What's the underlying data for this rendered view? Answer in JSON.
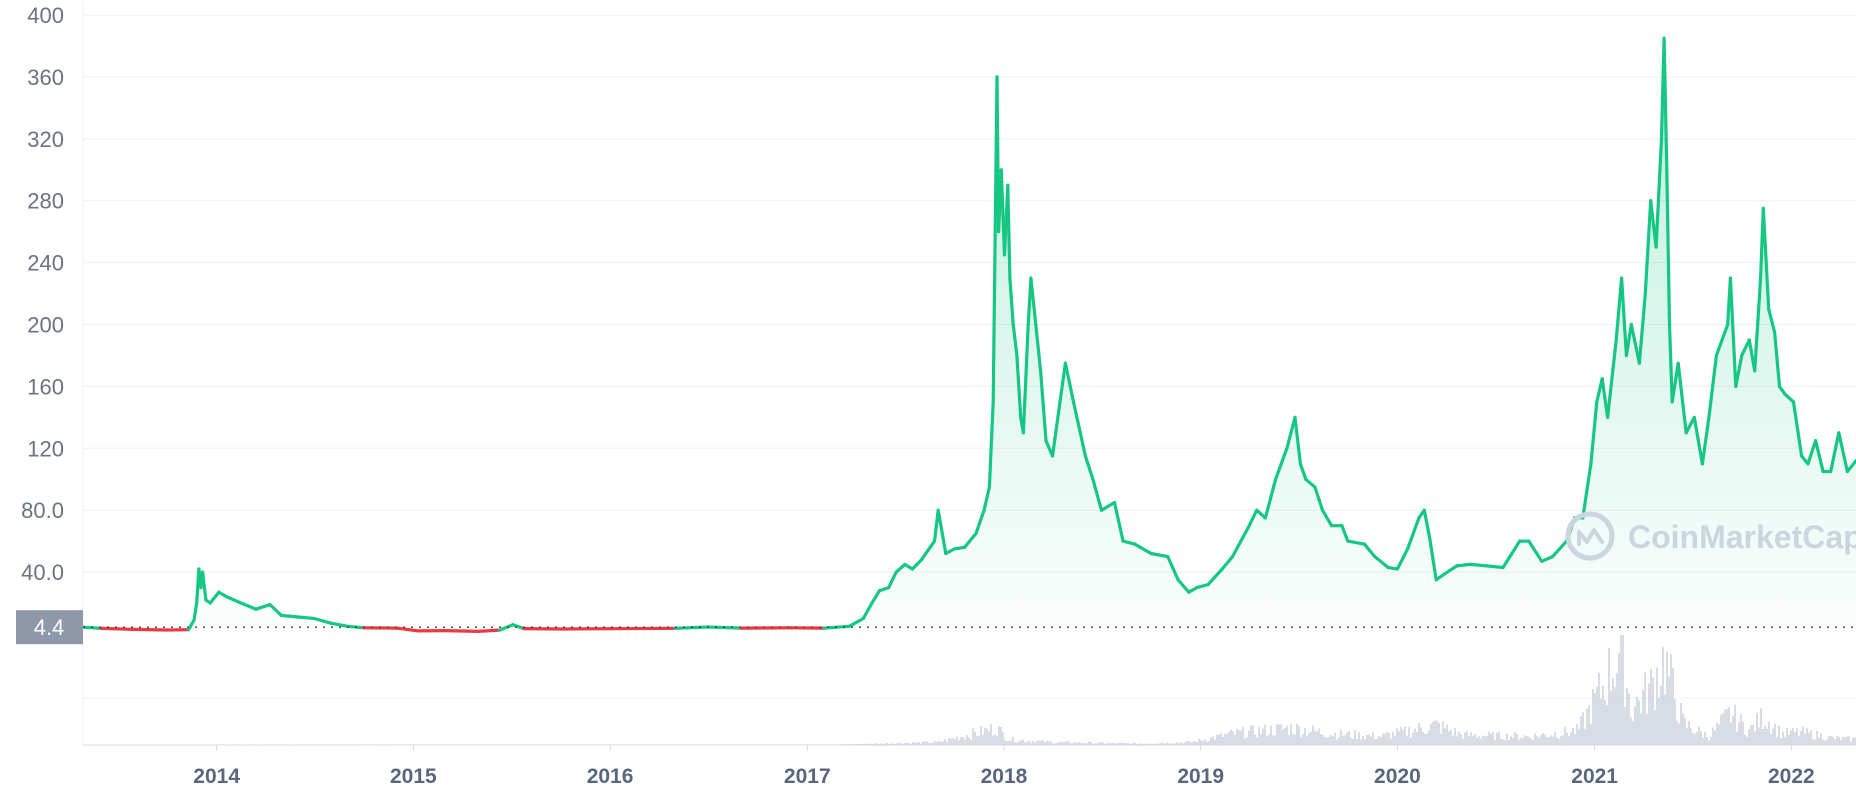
{
  "chart_data": {
    "type": "line",
    "title": "",
    "xlabel": "",
    "ylabel": "",
    "y_ticks": [
      "400",
      "360",
      "320",
      "280",
      "240",
      "200",
      "160",
      "120",
      "80.0",
      "40.0"
    ],
    "y_tick_values": [
      400,
      360,
      320,
      280,
      240,
      200,
      160,
      120,
      80,
      40
    ],
    "x_ticks": [
      "2014",
      "2015",
      "2016",
      "2017",
      "2018",
      "2019",
      "2020",
      "2021",
      "2022"
    ],
    "x_tick_values": [
      "2014-01-01",
      "2015-01-01",
      "2016-01-01",
      "2017-01-01",
      "2018-01-01",
      "2019-01-01",
      "2020-01-01",
      "2021-01-01",
      "2022-01-01"
    ],
    "x_range": [
      "2013-04-28",
      "2022-05-01"
    ],
    "ylim": [
      0,
      400
    ],
    "grid": true,
    "current_value": 4.4,
    "current_value_label": "4.4",
    "watermark": "CoinMarketCap",
    "colors": {
      "up": "#16c784",
      "down": "#ea3943",
      "fill": "#16c784",
      "volume": "#c8cdd9",
      "badge": "#8e98a8"
    },
    "series": [
      {
        "values": [
          [
            "2013-04-28",
            4.4
          ],
          [
            "2013-06-01",
            3.6
          ],
          [
            "2013-08-01",
            3.0
          ],
          [
            "2013-10-01",
            2.6
          ],
          [
            "2013-11-10",
            2.8
          ],
          [
            "2013-11-20",
            9.0
          ],
          [
            "2013-11-25",
            20.0
          ],
          [
            "2013-11-29",
            42.0
          ],
          [
            "2013-12-03",
            30.0
          ],
          [
            "2013-12-06",
            40.0
          ],
          [
            "2013-12-12",
            22.0
          ],
          [
            "2013-12-20",
            20.0
          ],
          [
            "2014-01-05",
            27.0
          ],
          [
            "2014-01-20",
            24.0
          ],
          [
            "2014-02-15",
            20.0
          ],
          [
            "2014-03-15",
            16.0
          ],
          [
            "2014-04-10",
            19.0
          ],
          [
            "2014-05-01",
            12.0
          ],
          [
            "2014-06-01",
            11.0
          ],
          [
            "2014-07-01",
            10.0
          ],
          [
            "2014-08-01",
            7.0
          ],
          [
            "2014-09-01",
            5.0
          ],
          [
            "2014-10-01",
            4.0
          ],
          [
            "2014-12-01",
            3.8
          ],
          [
            "2015-01-10",
            2.0
          ],
          [
            "2015-03-01",
            2.2
          ],
          [
            "2015-05-01",
            1.7
          ],
          [
            "2015-06-10",
            2.5
          ],
          [
            "2015-07-05",
            6.0
          ],
          [
            "2015-07-25",
            3.5
          ],
          [
            "2015-10-01",
            3.2
          ],
          [
            "2016-01-01",
            3.4
          ],
          [
            "2016-05-01",
            3.7
          ],
          [
            "2016-07-01",
            4.5
          ],
          [
            "2016-09-01",
            3.8
          ],
          [
            "2016-12-01",
            4.0
          ],
          [
            "2017-02-01",
            3.8
          ],
          [
            "2017-03-20",
            5.0
          ],
          [
            "2017-04-15",
            10.0
          ],
          [
            "2017-05-01",
            20.0
          ],
          [
            "2017-05-15",
            28.0
          ],
          [
            "2017-06-01",
            30.0
          ],
          [
            "2017-06-15",
            40.0
          ],
          [
            "2017-07-01",
            45.0
          ],
          [
            "2017-07-15",
            42.0
          ],
          [
            "2017-08-01",
            48.0
          ],
          [
            "2017-08-25",
            60.0
          ],
          [
            "2017-09-01",
            80.0
          ],
          [
            "2017-09-15",
            52.0
          ],
          [
            "2017-10-01",
            55.0
          ],
          [
            "2017-10-20",
            56.0
          ],
          [
            "2017-11-10",
            65.0
          ],
          [
            "2017-11-25",
            80.0
          ],
          [
            "2017-12-05",
            95.0
          ],
          [
            "2017-12-12",
            150.0
          ],
          [
            "2017-12-19",
            360.0
          ],
          [
            "2017-12-22",
            260.0
          ],
          [
            "2017-12-27",
            300.0
          ],
          [
            "2018-01-02",
            245.0
          ],
          [
            "2018-01-08",
            290.0
          ],
          [
            "2018-01-12",
            230.0
          ],
          [
            "2018-01-18",
            200.0
          ],
          [
            "2018-01-25",
            180.0
          ],
          [
            "2018-02-01",
            140.0
          ],
          [
            "2018-02-06",
            130.0
          ],
          [
            "2018-02-15",
            200.0
          ],
          [
            "2018-02-20",
            230.0
          ],
          [
            "2018-03-01",
            200.0
          ],
          [
            "2018-03-10",
            170.0
          ],
          [
            "2018-03-20",
            125.0
          ],
          [
            "2018-04-01",
            115.0
          ],
          [
            "2018-04-15",
            150.0
          ],
          [
            "2018-04-25",
            175.0
          ],
          [
            "2018-05-10",
            150.0
          ],
          [
            "2018-06-01",
            115.0
          ],
          [
            "2018-06-15",
            100.0
          ],
          [
            "2018-07-01",
            80.0
          ],
          [
            "2018-07-25",
            85.0
          ],
          [
            "2018-08-10",
            60.0
          ],
          [
            "2018-09-01",
            58.0
          ],
          [
            "2018-10-01",
            52.0
          ],
          [
            "2018-11-01",
            50.0
          ],
          [
            "2018-11-20",
            35.0
          ],
          [
            "2018-12-10",
            27.0
          ],
          [
            "2018-12-25",
            30.0
          ],
          [
            "2019-01-15",
            32.0
          ],
          [
            "2019-02-10",
            42.0
          ],
          [
            "2019-03-01",
            50.0
          ],
          [
            "2019-04-01",
            70.0
          ],
          [
            "2019-04-15",
            80.0
          ],
          [
            "2019-05-01",
            75.0
          ],
          [
            "2019-05-20",
            100.0
          ],
          [
            "2019-06-10",
            120.0
          ],
          [
            "2019-06-25",
            140.0
          ],
          [
            "2019-07-05",
            110.0
          ],
          [
            "2019-07-15",
            100.0
          ],
          [
            "2019-08-01",
            95.0
          ],
          [
            "2019-08-15",
            80.0
          ],
          [
            "2019-09-01",
            70.0
          ],
          [
            "2019-09-20",
            70.0
          ],
          [
            "2019-10-01",
            60.0
          ],
          [
            "2019-11-01",
            58.0
          ],
          [
            "2019-11-20",
            50.0
          ],
          [
            "2019-12-15",
            43.0
          ],
          [
            "2020-01-01",
            42.0
          ],
          [
            "2020-01-20",
            55.0
          ],
          [
            "2020-02-10",
            75.0
          ],
          [
            "2020-02-20",
            80.0
          ],
          [
            "2020-03-01",
            62.0
          ],
          [
            "2020-03-13",
            35.0
          ],
          [
            "2020-03-25",
            38.0
          ],
          [
            "2020-04-20",
            44.0
          ],
          [
            "2020-05-15",
            45.0
          ],
          [
            "2020-06-15",
            44.0
          ],
          [
            "2020-07-15",
            43.0
          ],
          [
            "2020-08-15",
            60.0
          ],
          [
            "2020-09-01",
            60.0
          ],
          [
            "2020-09-25",
            47.0
          ],
          [
            "2020-10-15",
            50.0
          ],
          [
            "2020-11-10",
            60.0
          ],
          [
            "2020-11-25",
            75.0
          ],
          [
            "2020-12-10",
            75.0
          ],
          [
            "2020-12-25",
            110.0
          ],
          [
            "2021-01-05",
            150.0
          ],
          [
            "2021-01-15",
            165.0
          ],
          [
            "2021-01-25",
            140.0
          ],
          [
            "2021-02-10",
            190.0
          ],
          [
            "2021-02-20",
            230.0
          ],
          [
            "2021-03-01",
            180.0
          ],
          [
            "2021-03-10",
            200.0
          ],
          [
            "2021-03-25",
            175.0
          ],
          [
            "2021-04-05",
            220.0
          ],
          [
            "2021-04-15",
            280.0
          ],
          [
            "2021-04-25",
            250.0
          ],
          [
            "2021-05-05",
            320.0
          ],
          [
            "2021-05-10",
            385.0
          ],
          [
            "2021-05-15",
            300.0
          ],
          [
            "2021-05-20",
            200.0
          ],
          [
            "2021-05-25",
            150.0
          ],
          [
            "2021-06-05",
            175.0
          ],
          [
            "2021-06-20",
            130.0
          ],
          [
            "2021-07-05",
            140.0
          ],
          [
            "2021-07-20",
            110.0
          ],
          [
            "2021-08-01",
            140.0
          ],
          [
            "2021-08-15",
            180.0
          ],
          [
            "2021-09-05",
            200.0
          ],
          [
            "2021-09-10",
            230.0
          ],
          [
            "2021-09-20",
            160.0
          ],
          [
            "2021-10-01",
            180.0
          ],
          [
            "2021-10-15",
            190.0
          ],
          [
            "2021-10-25",
            170.0
          ],
          [
            "2021-11-05",
            230.0
          ],
          [
            "2021-11-10",
            275.0
          ],
          [
            "2021-11-20",
            210.0
          ],
          [
            "2021-12-01",
            195.0
          ],
          [
            "2021-12-10",
            160.0
          ],
          [
            "2021-12-20",
            155.0
          ],
          [
            "2022-01-05",
            150.0
          ],
          [
            "2022-01-20",
            115.0
          ],
          [
            "2022-02-01",
            110.0
          ],
          [
            "2022-02-15",
            125.0
          ],
          [
            "2022-03-01",
            105.0
          ],
          [
            "2022-03-15",
            105.0
          ],
          [
            "2022-03-30",
            130.0
          ],
          [
            "2022-04-15",
            105.0
          ],
          [
            "2022-05-01",
            112.0
          ]
        ]
      }
    ],
    "volume": [
      [
        "2013-04-28",
        0.0
      ],
      [
        "2017-03-01",
        0.3
      ],
      [
        "2017-05-15",
        1.0
      ],
      [
        "2017-09-01",
        2.0
      ],
      [
        "2017-12-19",
        12.0
      ],
      [
        "2018-01-10",
        4.0
      ],
      [
        "2018-04-01",
        2.0
      ],
      [
        "2018-09-01",
        1.0
      ],
      [
        "2018-12-15",
        2.0
      ],
      [
        "2019-03-01",
        8.0
      ],
      [
        "2019-06-20",
        12.0
      ],
      [
        "2019-09-01",
        8.0
      ],
      [
        "2019-12-01",
        6.0
      ],
      [
        "2020-02-20",
        12.0
      ],
      [
        "2020-03-13",
        14.0
      ],
      [
        "2020-05-01",
        7.0
      ],
      [
        "2020-09-01",
        6.0
      ],
      [
        "2020-12-01",
        10.0
      ],
      [
        "2021-01-15",
        40.0
      ],
      [
        "2021-02-20",
        68.0
      ],
      [
        "2021-03-10",
        25.0
      ],
      [
        "2021-04-15",
        40.0
      ],
      [
        "2021-05-10",
        60.0
      ],
      [
        "2021-06-15",
        15.0
      ],
      [
        "2021-08-01",
        6.0
      ],
      [
        "2021-09-10",
        22.0
      ],
      [
        "2021-10-15",
        10.0
      ],
      [
        "2021-11-10",
        20.0
      ],
      [
        "2021-12-15",
        8.0
      ],
      [
        "2022-01-20",
        9.0
      ],
      [
        "2022-03-15",
        5.0
      ],
      [
        "2022-05-01",
        4.0
      ]
    ]
  }
}
